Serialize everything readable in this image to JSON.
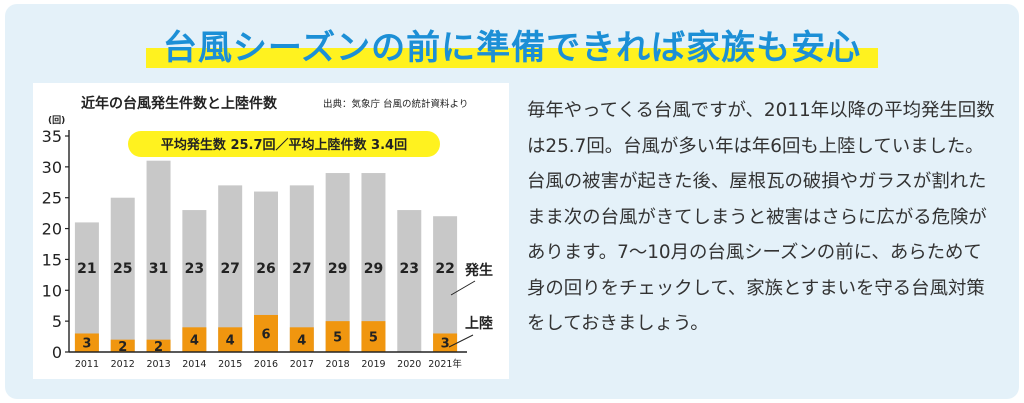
{
  "headline": "台風シーズンの前に準備できれば家族も安心",
  "body": "毎年やってくる台風ですが、2011年以降の平均発生回数は25.7回。台風が多い年は年6回も上陸していました。台風の被害が起きた後、屋根瓦の破損やガラスが割れたまま次の台風がきてしまうと被害はさらに広がる危険があります。7〜10月の台風シーズンの前に、あらためて身の回りをチェックして、家族とすまいを守る台風対策をしておきましょう。",
  "colors": {
    "headline": "#1c8fd6",
    "highlight": "#fff21f",
    "panel": "#e4f1f9",
    "bar_occurrence": "#c8c8c8",
    "bar_landfall": "#f0960f",
    "average_badge": "#fff21f"
  },
  "chart_data": {
    "type": "bar",
    "title": "近年の台風発生件数と上陸件数",
    "source": "出典：気象庁 台風の統計資料より",
    "y_unit": "(回)",
    "average_label": "平均発生数 25.7回／平均上陸件数 3.4回",
    "categories": [
      "2011",
      "2012",
      "2013",
      "2014",
      "2015",
      "2016",
      "2017",
      "2018",
      "2019",
      "2020",
      "2021年"
    ],
    "series": [
      {
        "name": "発生",
        "values": [
          21,
          25,
          31,
          23,
          27,
          26,
          27,
          29,
          29,
          23,
          22
        ]
      },
      {
        "name": "上陸",
        "values": [
          3,
          2,
          2,
          4,
          4,
          6,
          4,
          5,
          5,
          0,
          3
        ]
      }
    ],
    "ylim": [
      0,
      35
    ],
    "yticks": [
      0,
      5,
      10,
      15,
      20,
      25,
      30,
      35
    ],
    "grid": false,
    "legend": "right"
  }
}
